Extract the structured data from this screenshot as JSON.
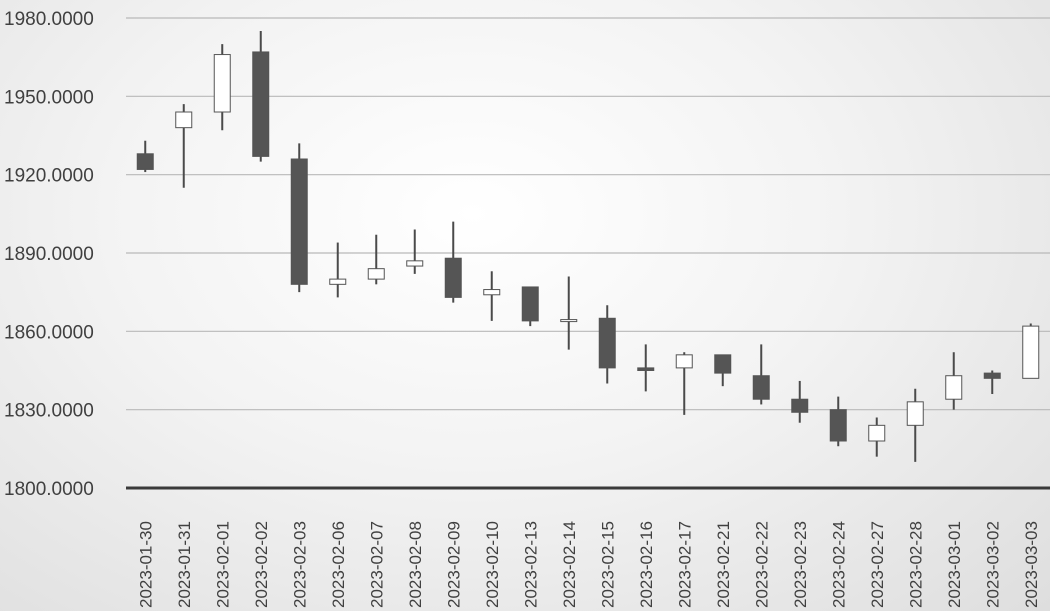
{
  "chart_data": {
    "type": "candlestick",
    "title": "",
    "xlabel": "",
    "ylabel": "",
    "ylim": [
      1800,
      1980
    ],
    "yticks": [
      "1800.0000",
      "1830.0000",
      "1860.0000",
      "1890.0000",
      "1920.0000",
      "1950.0000",
      "1980.0000"
    ],
    "grid": true,
    "colors": {
      "up": "#ffffff",
      "down": "#555555",
      "wick": "#4a4a4a"
    },
    "categories": [
      "2023-01-30",
      "2023-01-31",
      "2023-02-01",
      "2023-02-02",
      "2023-02-03",
      "2023-02-06",
      "2023-02-07",
      "2023-02-08",
      "2023-02-09",
      "2023-02-10",
      "2023-02-13",
      "2023-02-14",
      "2023-02-15",
      "2023-02-16",
      "2023-02-17",
      "2023-02-21",
      "2023-02-22",
      "2023-02-23",
      "2023-02-24",
      "2023-02-27",
      "2023-02-28",
      "2023-03-01",
      "2023-03-02",
      "2023-03-03"
    ],
    "open": [
      1928,
      1938,
      1944,
      1967,
      1926,
      1878,
      1880,
      1885,
      1888,
      1874,
      1877,
      1864.5,
      1865,
      1846,
      1846,
      1851,
      1843,
      1834,
      1830,
      1818,
      1824,
      1834,
      1844,
      1842
    ],
    "high": [
      1933,
      1947,
      1970,
      1975,
      1932,
      1894,
      1897,
      1899,
      1902,
      1883,
      1877,
      1881,
      1870,
      1855,
      1852,
      1851,
      1855,
      1841,
      1835,
      1827,
      1838,
      1852,
      1845,
      1863
    ],
    "low": [
      1921,
      1915,
      1937,
      1925,
      1875,
      1873,
      1878,
      1882,
      1871,
      1864,
      1862,
      1853,
      1840,
      1837,
      1828,
      1839,
      1832,
      1825,
      1816,
      1812,
      1810,
      1830,
      1836,
      1842
    ],
    "close": [
      1922,
      1944,
      1966,
      1927,
      1878,
      1880,
      1884,
      1887,
      1873,
      1876,
      1864,
      1864.5,
      1846,
      1845,
      1851,
      1844,
      1834,
      1829,
      1818,
      1824,
      1833,
      1843,
      1842,
      1862
    ]
  }
}
